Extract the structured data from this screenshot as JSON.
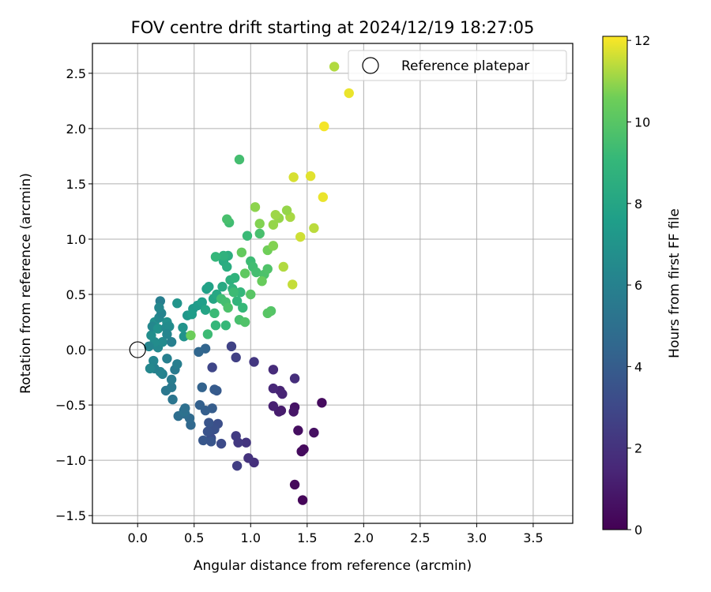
{
  "chart_data": {
    "type": "scatter",
    "title": "FOV centre drift starting at 2024/12/19 18:27:05",
    "xlabel": "Angular distance from reference (arcmin)",
    "ylabel": "Rotation from reference (arcmin)",
    "xlim": [
      -0.4,
      3.85
    ],
    "ylim": [
      -1.57,
      2.77
    ],
    "xticks": [
      0.0,
      0.5,
      1.0,
      1.5,
      2.0,
      2.5,
      3.0,
      3.5
    ],
    "yticks": [
      -1.5,
      -1.0,
      -0.5,
      0.0,
      0.5,
      1.0,
      1.5,
      2.0,
      2.5
    ],
    "xtick_labels": [
      "0.0",
      "0.5",
      "1.0",
      "1.5",
      "2.0",
      "2.5",
      "3.0",
      "3.5"
    ],
    "ytick_labels": [
      "−1.5",
      "−1.0",
      "−0.5",
      "0.0",
      "0.5",
      "1.0",
      "1.5",
      "2.0",
      "2.5"
    ],
    "grid": true,
    "legend": {
      "placement": "top-right",
      "entries": [
        "Reference platepar"
      ]
    },
    "reference_point": {
      "name": "Reference platepar",
      "x": 0.0,
      "y": 0.0
    },
    "colorbar": {
      "label": "Hours from first FF file",
      "range": [
        0,
        12.1
      ],
      "ticks": [
        0,
        2,
        4,
        6,
        8,
        10,
        12
      ],
      "tick_labels": [
        "0",
        "2",
        "4",
        "6",
        "8",
        "10",
        "12"
      ],
      "colormap": "viridis"
    },
    "points": [
      {
        "x": 1.46,
        "y": -1.36,
        "h": 0.2
      },
      {
        "x": 1.39,
        "y": -1.22,
        "h": 0.3
      },
      {
        "x": 1.47,
        "y": -0.9,
        "h": 0.3
      },
      {
        "x": 1.45,
        "y": -0.92,
        "h": 0.4
      },
      {
        "x": 1.42,
        "y": -0.73,
        "h": 0.5
      },
      {
        "x": 1.56,
        "y": -0.75,
        "h": 0.6
      },
      {
        "x": 1.63,
        "y": -0.48,
        "h": 0.4
      },
      {
        "x": 1.39,
        "y": -0.52,
        "h": 0.7
      },
      {
        "x": 1.38,
        "y": -0.56,
        "h": 0.8
      },
      {
        "x": 1.27,
        "y": -0.55,
        "h": 1.0
      },
      {
        "x": 1.25,
        "y": -0.56,
        "h": 1.1
      },
      {
        "x": 1.2,
        "y": -0.51,
        "h": 1.2
      },
      {
        "x": 1.26,
        "y": -0.37,
        "h": 1.3
      },
      {
        "x": 1.28,
        "y": -0.4,
        "h": 1.4
      },
      {
        "x": 1.2,
        "y": -0.35,
        "h": 1.5
      },
      {
        "x": 1.2,
        "y": -0.18,
        "h": 1.7
      },
      {
        "x": 1.39,
        "y": -0.26,
        "h": 1.8
      },
      {
        "x": 1.03,
        "y": -1.02,
        "h": 1.9
      },
      {
        "x": 0.98,
        "y": -0.98,
        "h": 2.0
      },
      {
        "x": 0.96,
        "y": -0.84,
        "h": 2.1
      },
      {
        "x": 0.89,
        "y": -0.84,
        "h": 2.3
      },
      {
        "x": 0.87,
        "y": -0.78,
        "h": 2.4
      },
      {
        "x": 0.88,
        "y": -1.05,
        "h": 2.5
      },
      {
        "x": 1.03,
        "y": -0.11,
        "h": 2.2
      },
      {
        "x": 0.87,
        "y": -0.07,
        "h": 2.6
      },
      {
        "x": 0.83,
        "y": 0.03,
        "h": 2.7
      },
      {
        "x": 0.66,
        "y": -0.16,
        "h": 2.9
      },
      {
        "x": 0.74,
        "y": -0.85,
        "h": 3.1
      },
      {
        "x": 0.65,
        "y": -0.8,
        "h": 3.2
      },
      {
        "x": 0.71,
        "y": -0.67,
        "h": 3.3
      },
      {
        "x": 0.68,
        "y": -0.72,
        "h": 3.4
      },
      {
        "x": 0.62,
        "y": -0.74,
        "h": 3.5
      },
      {
        "x": 0.63,
        "y": -0.66,
        "h": 3.6
      },
      {
        "x": 0.58,
        "y": -0.82,
        "h": 3.7
      },
      {
        "x": 0.65,
        "y": -0.83,
        "h": 3.6
      },
      {
        "x": 0.7,
        "y": -0.37,
        "h": 3.8
      },
      {
        "x": 0.68,
        "y": -0.36,
        "h": 3.9
      },
      {
        "x": 0.66,
        "y": -0.53,
        "h": 4.0
      },
      {
        "x": 0.6,
        "y": -0.55,
        "h": 4.1
      },
      {
        "x": 0.55,
        "y": -0.5,
        "h": 4.2
      },
      {
        "x": 0.57,
        "y": -0.34,
        "h": 4.3
      },
      {
        "x": 0.6,
        "y": 0.01,
        "h": 4.4
      },
      {
        "x": 0.54,
        "y": -0.02,
        "h": 4.5
      },
      {
        "x": 0.47,
        "y": -0.68,
        "h": 4.6
      },
      {
        "x": 0.46,
        "y": -0.62,
        "h": 4.7
      },
      {
        "x": 0.42,
        "y": -0.58,
        "h": 4.8
      },
      {
        "x": 0.36,
        "y": -0.6,
        "h": 4.9
      },
      {
        "x": 0.41,
        "y": -0.55,
        "h": 5.0
      },
      {
        "x": 0.41,
        "y": -0.56,
        "h": 5.1
      },
      {
        "x": 0.42,
        "y": -0.53,
        "h": 5.0
      },
      {
        "x": 0.31,
        "y": -0.45,
        "h": 5.3
      },
      {
        "x": 0.25,
        "y": -0.37,
        "h": 5.4
      },
      {
        "x": 0.3,
        "y": -0.34,
        "h": 5.5
      },
      {
        "x": 0.33,
        "y": -0.18,
        "h": 5.6
      },
      {
        "x": 0.3,
        "y": -0.27,
        "h": 5.7
      },
      {
        "x": 0.35,
        "y": -0.13,
        "h": 5.8
      },
      {
        "x": 0.26,
        "y": -0.08,
        "h": 5.9
      },
      {
        "x": 0.22,
        "y": -0.22,
        "h": 6.0
      },
      {
        "x": 0.2,
        "y": -0.2,
        "h": 6.1
      },
      {
        "x": 0.15,
        "y": -0.17,
        "h": 6.0
      },
      {
        "x": 0.14,
        "y": -0.1,
        "h": 6.2
      },
      {
        "x": 0.11,
        "y": -0.17,
        "h": 6.3
      },
      {
        "x": 0.18,
        "y": 0.02,
        "h": 6.4
      },
      {
        "x": 0.22,
        "y": 0.07,
        "h": 6.5
      },
      {
        "x": 0.15,
        "y": 0.07,
        "h": 6.6
      },
      {
        "x": 0.1,
        "y": 0.03,
        "h": 6.2
      },
      {
        "x": 0.12,
        "y": 0.13,
        "h": 6.7
      },
      {
        "x": 0.15,
        "y": 0.25,
        "h": 6.8
      },
      {
        "x": 0.13,
        "y": 0.21,
        "h": 6.3
      },
      {
        "x": 0.18,
        "y": 0.19,
        "h": 6.9
      },
      {
        "x": 0.26,
        "y": 0.25,
        "h": 6.8
      },
      {
        "x": 0.25,
        "y": 0.2,
        "h": 6.5
      },
      {
        "x": 0.28,
        "y": 0.21,
        "h": 6.6
      },
      {
        "x": 0.19,
        "y": 0.29,
        "h": 6.4
      },
      {
        "x": 0.21,
        "y": 0.33,
        "h": 6.1
      },
      {
        "x": 0.2,
        "y": 0.44,
        "h": 5.8
      },
      {
        "x": 0.19,
        "y": 0.38,
        "h": 6.3
      },
      {
        "x": 0.3,
        "y": 0.07,
        "h": 5.9
      },
      {
        "x": 0.26,
        "y": 0.14,
        "h": 6.2
      },
      {
        "x": 0.41,
        "y": 0.12,
        "h": 6.9
      },
      {
        "x": 0.4,
        "y": 0.2,
        "h": 7.0
      },
      {
        "x": 0.35,
        "y": 0.42,
        "h": 7.0
      },
      {
        "x": 0.44,
        "y": 0.31,
        "h": 7.2
      },
      {
        "x": 0.49,
        "y": 0.37,
        "h": 7.3
      },
      {
        "x": 0.53,
        "y": 0.4,
        "h": 7.4
      },
      {
        "x": 0.48,
        "y": 0.32,
        "h": 7.5
      },
      {
        "x": 0.57,
        "y": 0.43,
        "h": 7.6
      },
      {
        "x": 0.61,
        "y": 0.55,
        "h": 7.7
      },
      {
        "x": 0.63,
        "y": 0.57,
        "h": 7.8
      },
      {
        "x": 0.6,
        "y": 0.36,
        "h": 7.9
      },
      {
        "x": 0.67,
        "y": 0.46,
        "h": 8.0
      },
      {
        "x": 0.7,
        "y": 0.5,
        "h": 8.1
      },
      {
        "x": 0.75,
        "y": 0.57,
        "h": 8.2
      },
      {
        "x": 0.76,
        "y": 0.8,
        "h": 8.3
      },
      {
        "x": 0.79,
        "y": 0.75,
        "h": 8.4
      },
      {
        "x": 0.8,
        "y": 0.85,
        "h": 8.5
      },
      {
        "x": 0.82,
        "y": 0.63,
        "h": 8.6
      },
      {
        "x": 0.84,
        "y": 0.55,
        "h": 8.7
      },
      {
        "x": 0.86,
        "y": 0.65,
        "h": 8.8
      },
      {
        "x": 0.88,
        "y": 0.44,
        "h": 8.9
      },
      {
        "x": 0.91,
        "y": 0.52,
        "h": 9.0
      },
      {
        "x": 0.93,
        "y": 0.38,
        "h": 9.1
      },
      {
        "x": 0.97,
        "y": 1.03,
        "h": 9.2
      },
      {
        "x": 1.0,
        "y": 0.8,
        "h": 9.3
      },
      {
        "x": 1.02,
        "y": 0.75,
        "h": 9.4
      },
      {
        "x": 1.05,
        "y": 0.7,
        "h": 9.5
      },
      {
        "x": 1.08,
        "y": 1.05,
        "h": 9.6
      },
      {
        "x": 1.12,
        "y": 0.68,
        "h": 9.7
      },
      {
        "x": 1.15,
        "y": 0.73,
        "h": 9.8
      },
      {
        "x": 1.18,
        "y": 0.35,
        "h": 9.9
      },
      {
        "x": 1.15,
        "y": 0.33,
        "h": 10.0
      },
      {
        "x": 0.85,
        "y": 0.52,
        "h": 9.3
      },
      {
        "x": 0.76,
        "y": 0.85,
        "h": 8.7
      },
      {
        "x": 0.69,
        "y": 0.84,
        "h": 9.0
      },
      {
        "x": 0.81,
        "y": 1.15,
        "h": 9.4
      },
      {
        "x": 0.79,
        "y": 1.18,
        "h": 9.6
      },
      {
        "x": 0.9,
        "y": 1.72,
        "h": 9.5
      },
      {
        "x": 0.68,
        "y": 0.33,
        "h": 9.2
      },
      {
        "x": 0.69,
        "y": 0.22,
        "h": 9.0
      },
      {
        "x": 0.78,
        "y": 0.22,
        "h": 9.1
      },
      {
        "x": 0.62,
        "y": 0.14,
        "h": 9.3
      },
      {
        "x": 0.74,
        "y": 0.46,
        "h": 9.4
      },
      {
        "x": 0.78,
        "y": 0.43,
        "h": 9.5
      },
      {
        "x": 0.8,
        "y": 0.38,
        "h": 9.7
      },
      {
        "x": 0.9,
        "y": 0.27,
        "h": 9.6
      },
      {
        "x": 0.95,
        "y": 0.25,
        "h": 9.8
      },
      {
        "x": 1.0,
        "y": 0.5,
        "h": 10.0
      },
      {
        "x": 0.95,
        "y": 0.69,
        "h": 10.2
      },
      {
        "x": 0.92,
        "y": 0.88,
        "h": 10.3
      },
      {
        "x": 1.1,
        "y": 0.62,
        "h": 10.4
      },
      {
        "x": 1.15,
        "y": 0.9,
        "h": 10.6
      },
      {
        "x": 1.2,
        "y": 0.94,
        "h": 10.8
      },
      {
        "x": 1.25,
        "y": 1.19,
        "h": 11.0
      },
      {
        "x": 1.22,
        "y": 1.22,
        "h": 11.1
      },
      {
        "x": 1.35,
        "y": 1.2,
        "h": 11.2
      },
      {
        "x": 1.2,
        "y": 1.13,
        "h": 11.0
      },
      {
        "x": 1.29,
        "y": 0.75,
        "h": 11.3
      },
      {
        "x": 1.37,
        "y": 0.59,
        "h": 11.5
      },
      {
        "x": 1.44,
        "y": 1.02,
        "h": 11.6
      },
      {
        "x": 1.56,
        "y": 1.1,
        "h": 11.4
      },
      {
        "x": 1.38,
        "y": 1.56,
        "h": 11.7
      },
      {
        "x": 1.53,
        "y": 1.57,
        "h": 11.8
      },
      {
        "x": 1.64,
        "y": 1.38,
        "h": 11.9
      },
      {
        "x": 1.65,
        "y": 2.02,
        "h": 12.0
      },
      {
        "x": 1.74,
        "y": 2.56,
        "h": 11.3
      },
      {
        "x": 1.87,
        "y": 2.32,
        "h": 11.9
      },
      {
        "x": 1.04,
        "y": 1.29,
        "h": 10.9
      },
      {
        "x": 1.08,
        "y": 1.14,
        "h": 10.8
      },
      {
        "x": 1.32,
        "y": 1.26,
        "h": 11.0
      },
      {
        "x": 0.47,
        "y": 0.13,
        "h": 10.5
      }
    ]
  }
}
